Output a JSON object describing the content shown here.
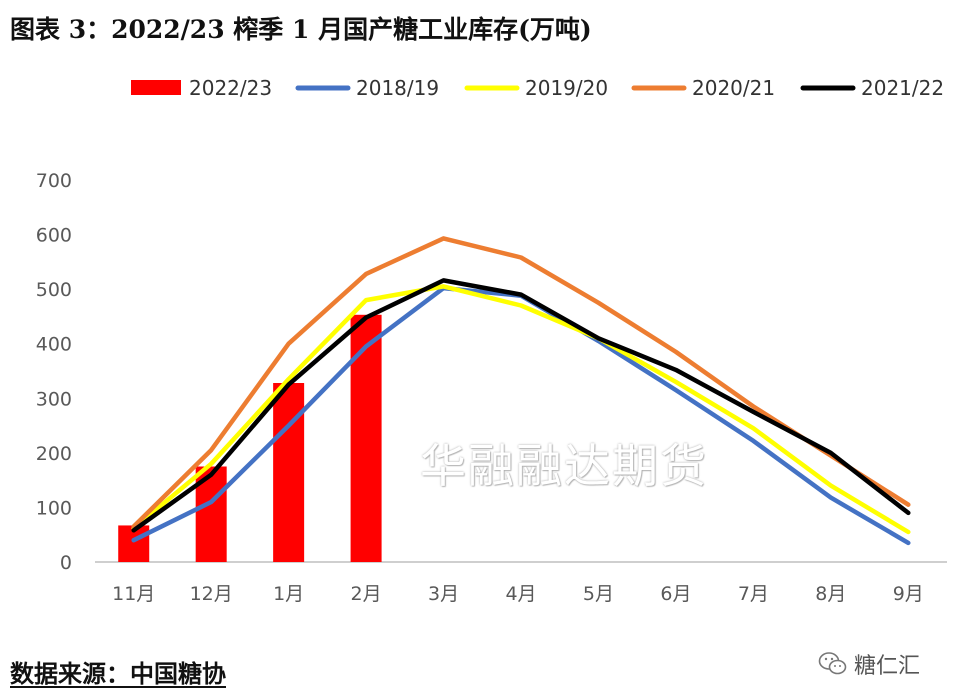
{
  "header": {
    "title": "图表 3：2022/23 榨季 1 月国产糖工业库存(万吨)"
  },
  "watermark": "华融融达期货",
  "footer": {
    "source": "数据来源：中国糖协",
    "brand": "糖仁汇"
  },
  "colors": {
    "bar": "#ff0000",
    "s2018": "#4472c4",
    "s2019": "#ffff00",
    "s2020": "#ed7d31",
    "s2021": "#000000",
    "axis": "#bfbfbf"
  },
  "chart_data": {
    "type": "bar+line",
    "title": "图表 3：2022/23 榨季 1 月国产糖工业库存(万吨)",
    "categories": [
      "11月",
      "12月",
      "1月",
      "2月",
      "3月",
      "4月",
      "5月",
      "6月",
      "7月",
      "8月",
      "9月"
    ],
    "ylim": [
      0,
      700
    ],
    "yticks": [
      0,
      100,
      200,
      300,
      400,
      500,
      600,
      700
    ],
    "legend_position": "top",
    "bars": {
      "name": "2022/23",
      "values": [
        67,
        175,
        328,
        453
      ]
    },
    "series": [
      {
        "name": "2018/19",
        "values": [
          40,
          110,
          250,
          395,
          502,
          488,
          405,
          315,
          222,
          118,
          35
        ]
      },
      {
        "name": "2019/20",
        "values": [
          62,
          180,
          335,
          480,
          505,
          470,
          410,
          330,
          245,
          140,
          55
        ]
      },
      {
        "name": "2020/21",
        "values": [
          65,
          205,
          400,
          528,
          593,
          558,
          475,
          385,
          285,
          195,
          105
        ]
      },
      {
        "name": "2021/22",
        "values": [
          58,
          160,
          325,
          448,
          516,
          490,
          410,
          352,
          275,
          200,
          90
        ]
      }
    ]
  }
}
